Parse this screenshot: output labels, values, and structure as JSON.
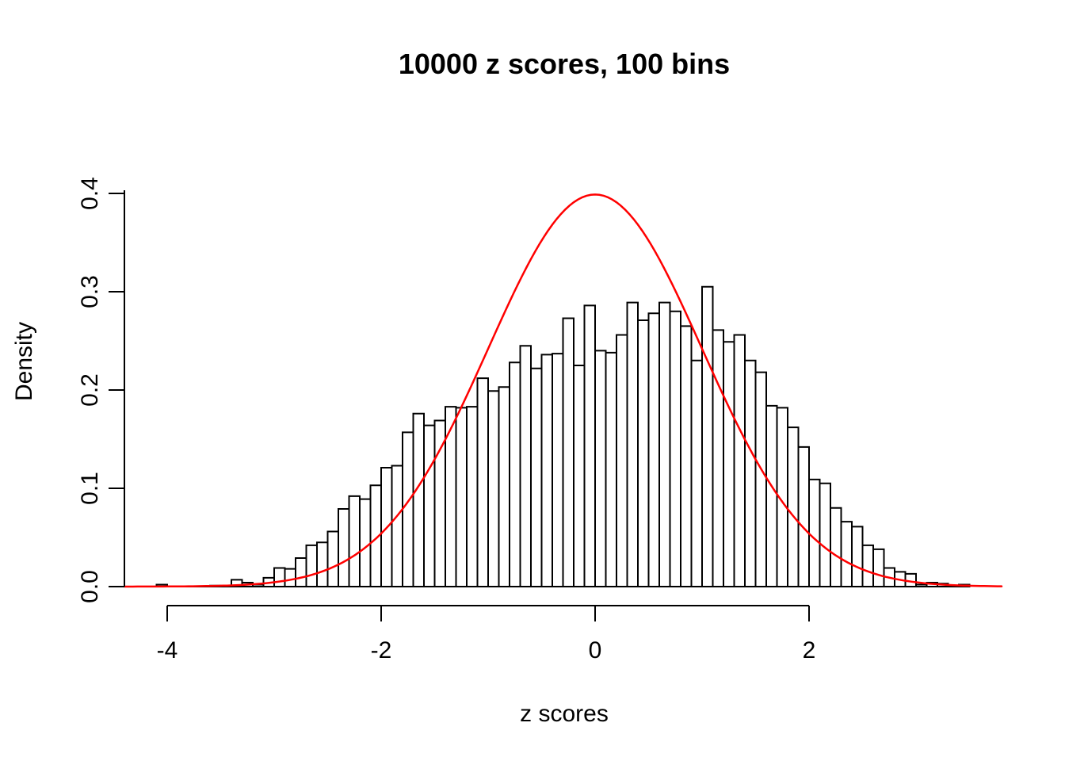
{
  "figure": {
    "title": "10000 z scores, 100 bins",
    "xlabel": "z scores",
    "ylabel": "Density"
  },
  "chart_data": {
    "type": "bar",
    "subtype": "histogram-with-density-curve",
    "title": "10000 z scores, 100 bins",
    "xlabel": "z scores",
    "ylabel": "Density",
    "x_ticks": [
      -4,
      -2,
      0,
      2
    ],
    "y_ticks": [
      0.0,
      0.1,
      0.2,
      0.3,
      0.4
    ],
    "xlim": [
      -4.4,
      3.95
    ],
    "ylim": [
      0.0,
      0.4
    ],
    "grid": false,
    "legend_position": "none",
    "bin_start": -4.1,
    "bin_width": 0.1,
    "densities": [
      0.002,
      0.0,
      0.0,
      0.0,
      0.0,
      0.001,
      0.0,
      0.007,
      0.004,
      0.002,
      0.009,
      0.019,
      0.018,
      0.029,
      0.042,
      0.045,
      0.056,
      0.079,
      0.092,
      0.089,
      0.103,
      0.121,
      0.123,
      0.157,
      0.176,
      0.164,
      0.169,
      0.183,
      0.182,
      0.183,
      0.212,
      0.199,
      0.203,
      0.228,
      0.245,
      0.222,
      0.236,
      0.237,
      0.273,
      0.225,
      0.286,
      0.24,
      0.238,
      0.256,
      0.289,
      0.271,
      0.278,
      0.289,
      0.28,
      0.265,
      0.23,
      0.305,
      0.261,
      0.249,
      0.256,
      0.23,
      0.218,
      0.184,
      0.182,
      0.162,
      0.142,
      0.109,
      0.105,
      0.08,
      0.066,
      0.061,
      0.042,
      0.038,
      0.019,
      0.015,
      0.013,
      0.002,
      0.004,
      0.003,
      0.001,
      0.002
    ],
    "curve": {
      "name": "standard-normal-density",
      "mean": 0,
      "sd": 1,
      "peak": 0.3989,
      "x_from": -4.4,
      "x_to": 3.8,
      "color": "#ff0000"
    },
    "bar_fill": "#ffffff",
    "bar_stroke": "#000000",
    "axis_color": "#000000"
  }
}
